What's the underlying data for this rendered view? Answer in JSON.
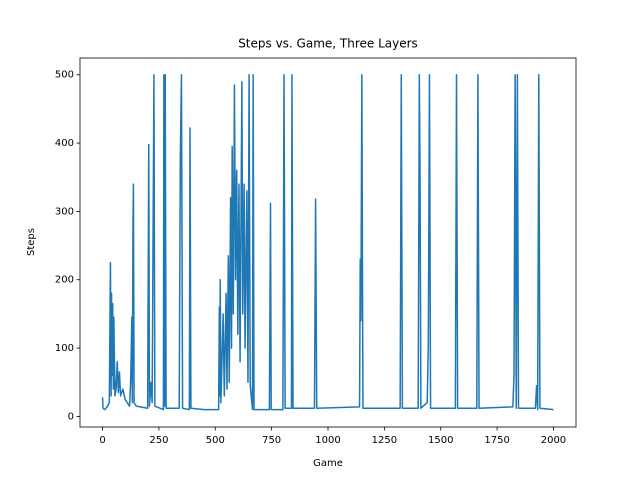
{
  "chart_data": {
    "type": "line",
    "title": "Steps vs. Game, Three Layers",
    "x_label": "Game",
    "y_label": "Steps",
    "xlim": [
      -100,
      2100
    ],
    "ylim": [
      -15.5,
      524.5
    ],
    "xticks": [
      0,
      250,
      500,
      750,
      1000,
      1250,
      1500,
      1750,
      2000
    ],
    "yticks": [
      0,
      100,
      200,
      300,
      400,
      500
    ],
    "series": [
      {
        "color": "#1f77b4",
        "x": [
          0,
          2,
          10,
          20,
          30,
          35,
          38,
          40,
          42,
          45,
          48,
          50,
          55,
          60,
          65,
          70,
          75,
          80,
          90,
          100,
          110,
          120,
          125,
          130,
          132,
          135,
          137,
          140,
          150,
          200,
          205,
          208,
          215,
          220,
          228,
          232,
          270,
          272,
          275,
          278,
          282,
          340,
          345,
          350,
          355,
          385,
          388,
          392,
          450,
          515,
          518,
          520,
          522,
          525,
          535,
          540,
          548,
          552,
          558,
          562,
          568,
          572,
          575,
          580,
          585,
          590,
          595,
          600,
          605,
          610,
          618,
          622,
          628,
          632,
          640,
          645,
          650,
          655,
          665,
          668,
          672,
          740,
          745,
          748,
          800,
          805,
          810,
          838,
          840,
          845,
          940,
          945,
          950,
          1140,
          1143,
          1146,
          1150,
          1155,
          1320,
          1325,
          1330,
          1400,
          1405,
          1408,
          1412,
          1440,
          1445,
          1450,
          1455,
          1565,
          1570,
          1575,
          1660,
          1665,
          1670,
          1820,
          1825,
          1830,
          1835,
          1840,
          1845,
          1920,
          1925,
          1930,
          1935,
          1940,
          2000
        ],
        "values": [
          28,
          12,
          10,
          14,
          20,
          225,
          30,
          180,
          60,
          165,
          40,
          145,
          30,
          40,
          80,
          35,
          65,
          30,
          40,
          25,
          20,
          15,
          55,
          145,
          20,
          280,
          340,
          20,
          15,
          12,
          398,
          15,
          50,
          20,
          500,
          15,
          10,
          500,
          15,
          500,
          12,
          12,
          380,
          500,
          12,
          10,
          422,
          12,
          10,
          10,
          160,
          30,
          200,
          20,
          150,
          30,
          180,
          40,
          235,
          50,
          320,
          100,
          395,
          150,
          485,
          200,
          360,
          120,
          340,
          80,
          490,
          150,
          340,
          100,
          330,
          50,
          500,
          45,
          10,
          500,
          10,
          10,
          312,
          10,
          10,
          500,
          12,
          12,
          500,
          12,
          12,
          318,
          12,
          14,
          230,
          140,
          500,
          12,
          12,
          500,
          12,
          12,
          500,
          365,
          12,
          20,
          105,
          500,
          12,
          12,
          500,
          12,
          12,
          500,
          12,
          14,
          60,
          500,
          12,
          500,
          12,
          12,
          45,
          10,
          500,
          12,
          10
        ]
      }
    ]
  }
}
